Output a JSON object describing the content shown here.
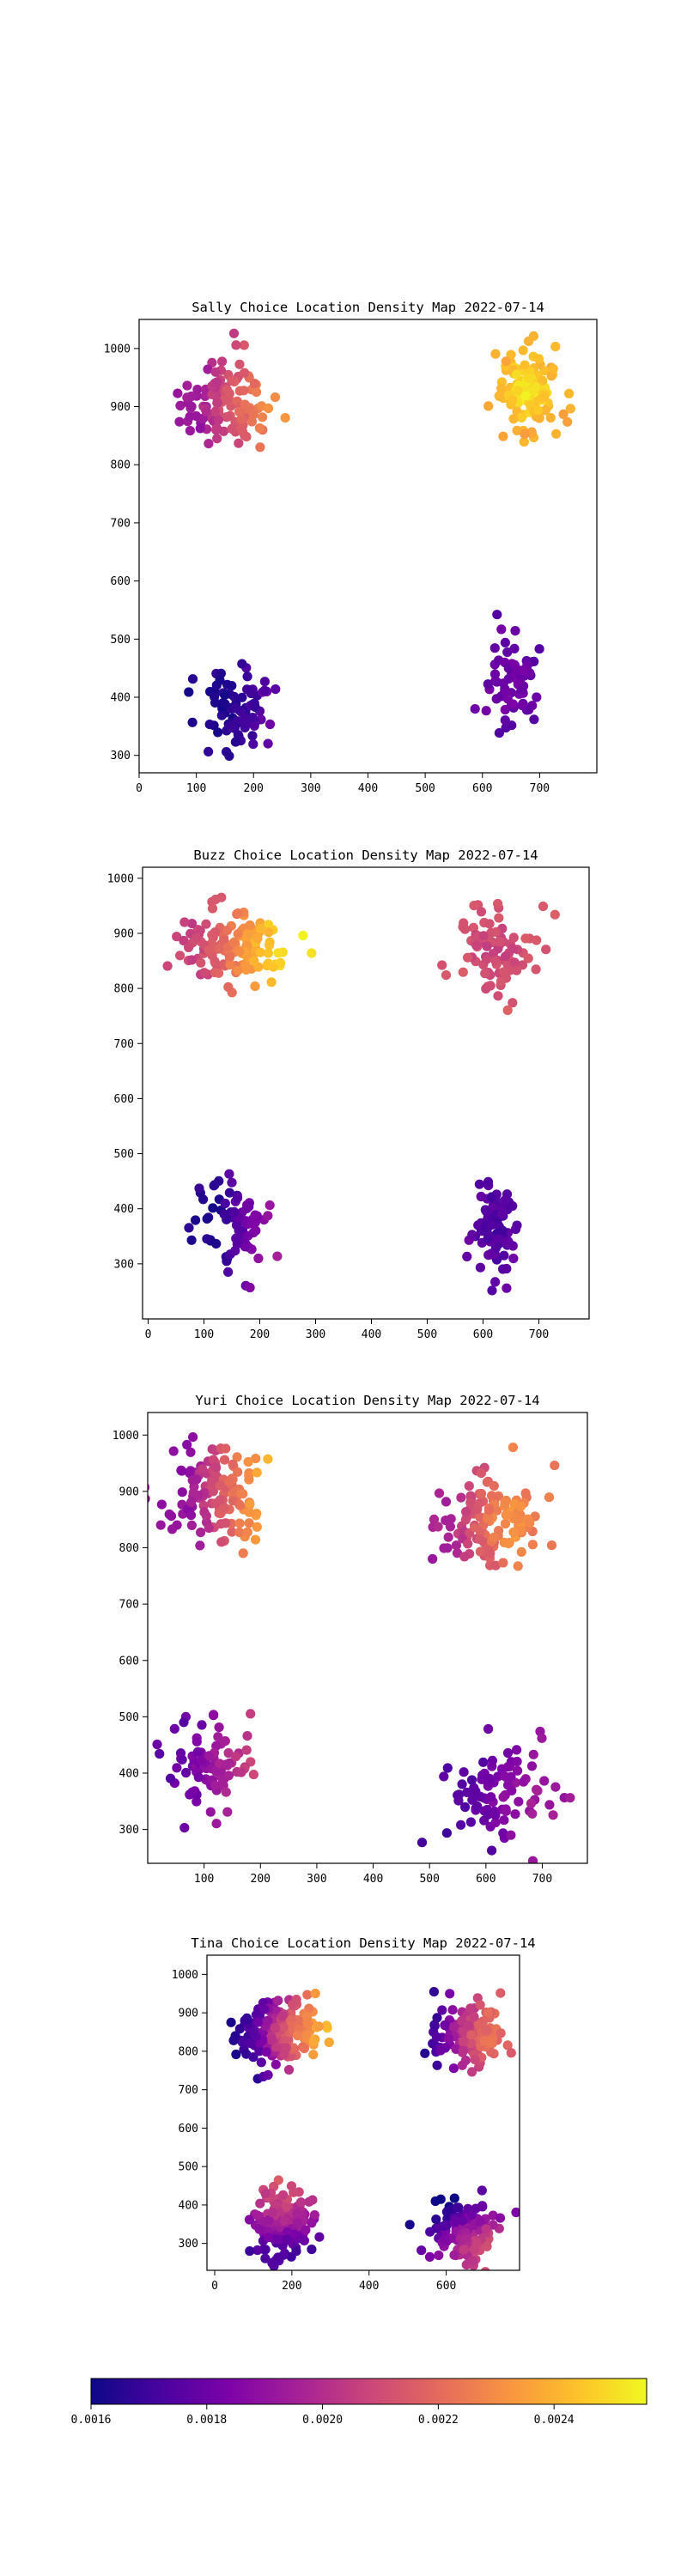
{
  "colorbar": {
    "colormap": "plasma",
    "vmin": 0.0016,
    "vmax": 0.00256,
    "ticks": [
      0.0016,
      0.0018,
      0.002,
      0.0022,
      0.0024
    ],
    "tick_labels": [
      "0.0016",
      "0.0018",
      "0.0020",
      "0.0022",
      "0.0024"
    ]
  },
  "chart_data": [
    {
      "type": "scatter",
      "title": "Sally Choice Location Density Map 2022-07-14",
      "xlim": [
        0,
        800
      ],
      "ylim": [
        270,
        1050
      ],
      "xticks": [
        0,
        100,
        200,
        300,
        400,
        500,
        600,
        700
      ],
      "yticks": [
        300,
        400,
        500,
        600,
        700,
        800,
        900,
        1000
      ],
      "clusters": [
        {
          "cx": 150,
          "cy": 910,
          "sx": 38,
          "sy": 40,
          "n": 120,
          "c_center": 0.00214,
          "c_edge": 0.00203,
          "c_right": 0.00236,
          "grad": 70
        },
        {
          "cx": 680,
          "cy": 930,
          "sx": 28,
          "sy": 35,
          "n": 120,
          "c_center": 0.00253,
          "c_edge": 0.00238,
          "c_right": 0.00238,
          "grad": 0
        },
        {
          "cx": 180,
          "cy": 380,
          "sx": 30,
          "sy": 35,
          "n": 85,
          "c_center": 0.00167,
          "c_edge": 0.0017,
          "c_right": 0.00176,
          "grad": 60
        },
        {
          "cx": 650,
          "cy": 420,
          "sx": 25,
          "sy": 35,
          "n": 70,
          "c_center": 0.00183,
          "c_edge": 0.00178,
          "c_right": 0.00176,
          "grad": 0
        }
      ]
    },
    {
      "type": "scatter",
      "title": "Buzz Choice Location Density Map 2022-07-14",
      "xlim": [
        -10,
        790
      ],
      "ylim": [
        200,
        1020
      ],
      "xticks": [
        0,
        100,
        200,
        300,
        400,
        500,
        600,
        700
      ],
      "yticks": [
        300,
        400,
        500,
        600,
        700,
        800,
        900,
        1000
      ],
      "clusters": [
        {
          "cx": 150,
          "cy": 875,
          "sx": 45,
          "sy": 30,
          "n": 140,
          "c_center": 0.00228,
          "c_edge": 0.00222,
          "c_right": 0.00253,
          "grad": 80
        },
        {
          "cx": 620,
          "cy": 870,
          "sx": 35,
          "sy": 40,
          "n": 85,
          "c_center": 0.00207,
          "c_edge": 0.00214,
          "c_right": 0.002,
          "grad": 0
        },
        {
          "cx": 150,
          "cy": 375,
          "sx": 35,
          "sy": 45,
          "n": 75,
          "c_center": 0.00171,
          "c_edge": 0.00174,
          "c_right": 0.00186,
          "grad": 60
        },
        {
          "cx": 620,
          "cy": 370,
          "sx": 22,
          "sy": 45,
          "n": 85,
          "c_center": 0.00172,
          "c_edge": 0.00178,
          "c_right": 0.0018,
          "grad": 0
        }
      ]
    },
    {
      "type": "scatter",
      "title": "Yuri Choice Location Density Map 2022-07-14",
      "xlim": [
        0,
        780
      ],
      "ylim": [
        240,
        1040
      ],
      "xticks": [
        100,
        200,
        300,
        400,
        500,
        600,
        700
      ],
      "yticks": [
        300,
        400,
        500,
        600,
        700,
        800,
        900,
        1000
      ],
      "clusters": [
        {
          "cx": 120,
          "cy": 900,
          "sx": 45,
          "sy": 45,
          "n": 140,
          "c_center": 0.00212,
          "c_edge": 0.00206,
          "c_right": 0.00242,
          "grad": 80
        },
        {
          "cx": 610,
          "cy": 850,
          "sx": 45,
          "sy": 40,
          "n": 130,
          "c_center": 0.00226,
          "c_edge": 0.00215,
          "c_right": 0.0021,
          "grad": -60
        },
        {
          "cx": 110,
          "cy": 410,
          "sx": 40,
          "sy": 40,
          "n": 85,
          "c_center": 0.00193,
          "c_edge": 0.00186,
          "c_right": 0.00208,
          "grad": 60
        },
        {
          "cx": 620,
          "cy": 360,
          "sx": 45,
          "sy": 45,
          "n": 95,
          "c_center": 0.00186,
          "c_edge": 0.0018,
          "c_right": 0.00197,
          "grad": 60
        }
      ]
    },
    {
      "type": "scatter",
      "title": "Tina Choice Location Density Map 2022-07-14",
      "xlim": [
        -20,
        790
      ],
      "ylim": [
        230,
        1050
      ],
      "xticks": [
        0,
        200,
        400,
        600
      ],
      "yticks": [
        300,
        400,
        500,
        600,
        700,
        800,
        900,
        1000
      ],
      "clusters": [
        {
          "cx": 160,
          "cy": 850,
          "sx": 55,
          "sy": 40,
          "n": 190,
          "c_center": 0.0021,
          "c_edge": 0.0019,
          "c_right": 0.00252,
          "grad": 100
        },
        {
          "cx": 660,
          "cy": 840,
          "sx": 45,
          "sy": 40,
          "n": 140,
          "c_center": 0.00212,
          "c_edge": 0.002,
          "c_right": 0.00182,
          "grad": -90
        },
        {
          "cx": 180,
          "cy": 360,
          "sx": 40,
          "sy": 45,
          "n": 160,
          "c_center": 0.002,
          "c_edge": 0.00188,
          "c_right": 0.00225,
          "grad": 0,
          "vgrad": 100
        },
        {
          "cx": 650,
          "cy": 330,
          "sx": 45,
          "sy": 40,
          "n": 140,
          "c_center": 0.00195,
          "c_edge": 0.00188,
          "c_right": 0.00175,
          "grad": -100,
          "vgrad": 70
        }
      ]
    }
  ]
}
